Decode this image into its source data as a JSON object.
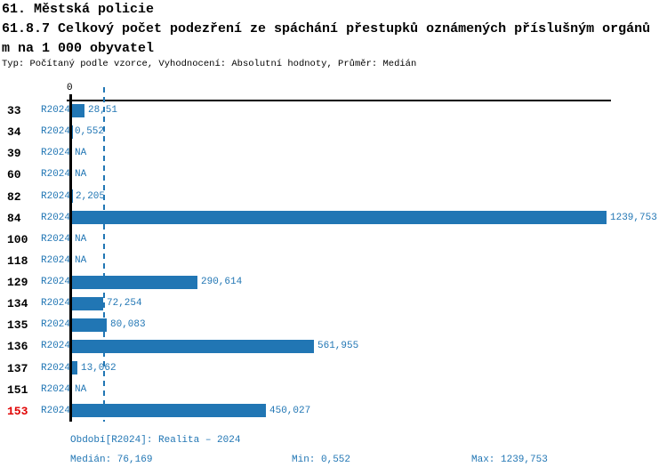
{
  "header": {
    "title": "61. Městská policie",
    "subtitle_line1": "61.8.7 Celkový počet podezření ze spáchání přestupků oznámených příslušným orgánů",
    "subtitle_line2": "m na 1 000 obyvatel",
    "meta": "Typ: Počítaný podle vzorce, Vyhodnocení: Absolutní hodnoty, Průměr: Medián"
  },
  "chart_data": {
    "type": "bar",
    "orientation": "horizontal",
    "title": "61.8.7 Celkový počet podezření ze spáchání přestupků oznámených příslušným orgánům na 1 000 obyvatel",
    "axis_zero_label": "0",
    "xlim": [
      0,
      1239.753
    ],
    "median_value": 76.169,
    "categories": [
      "33",
      "34",
      "39",
      "60",
      "82",
      "84",
      "100",
      "118",
      "129",
      "134",
      "135",
      "136",
      "137",
      "151",
      "153"
    ],
    "series": [
      {
        "name": "R2024",
        "values": [
          28.51,
          0.552,
          null,
          null,
          2.205,
          1239.753,
          null,
          null,
          290.614,
          72.254,
          80.083,
          561.955,
          13.062,
          null,
          450.027
        ]
      }
    ],
    "rows": [
      {
        "category": "33",
        "period": "R2024",
        "value": 28.51,
        "label": "28,51",
        "highlight": false
      },
      {
        "category": "34",
        "period": "R2024",
        "value": 0.552,
        "label": "0,552",
        "highlight": false
      },
      {
        "category": "39",
        "period": "R2024",
        "value": null,
        "label": "NA",
        "highlight": false
      },
      {
        "category": "60",
        "period": "R2024",
        "value": null,
        "label": "NA",
        "highlight": false
      },
      {
        "category": "82",
        "period": "R2024",
        "value": 2.205,
        "label": "2,205",
        "highlight": false
      },
      {
        "category": "84",
        "period": "R2024",
        "value": 1239.753,
        "label": "1239,753",
        "highlight": false
      },
      {
        "category": "100",
        "period": "R2024",
        "value": null,
        "label": "NA",
        "highlight": false
      },
      {
        "category": "118",
        "period": "R2024",
        "value": null,
        "label": "NA",
        "highlight": false
      },
      {
        "category": "129",
        "period": "R2024",
        "value": 290.614,
        "label": "290,614",
        "highlight": false
      },
      {
        "category": "134",
        "period": "R2024",
        "value": 72.254,
        "label": "72,254",
        "highlight": false
      },
      {
        "category": "135",
        "period": "R2024",
        "value": 80.083,
        "label": "80,083",
        "highlight": false
      },
      {
        "category": "136",
        "period": "R2024",
        "value": 561.955,
        "label": "561,955",
        "highlight": false
      },
      {
        "category": "137",
        "period": "R2024",
        "value": 13.062,
        "label": "13,062",
        "highlight": false
      },
      {
        "category": "151",
        "period": "R2024",
        "value": null,
        "label": "NA",
        "highlight": false
      },
      {
        "category": "153",
        "period": "R2024",
        "value": 450.027,
        "label": "450,027",
        "highlight": true
      }
    ],
    "legend_position": "none",
    "grid": false
  },
  "footer": {
    "period": "Období[R2024]: Realita – 2024",
    "median": "Medián: 76,169",
    "min": "Min: 0,552",
    "max": "Max: 1239,753"
  },
  "colors": {
    "bar_blue": "#2176B4",
    "text_blue": "#2176B4",
    "highlight_red": "#E00000",
    "axis_black": "#000000",
    "background": "#FFFFFF"
  }
}
